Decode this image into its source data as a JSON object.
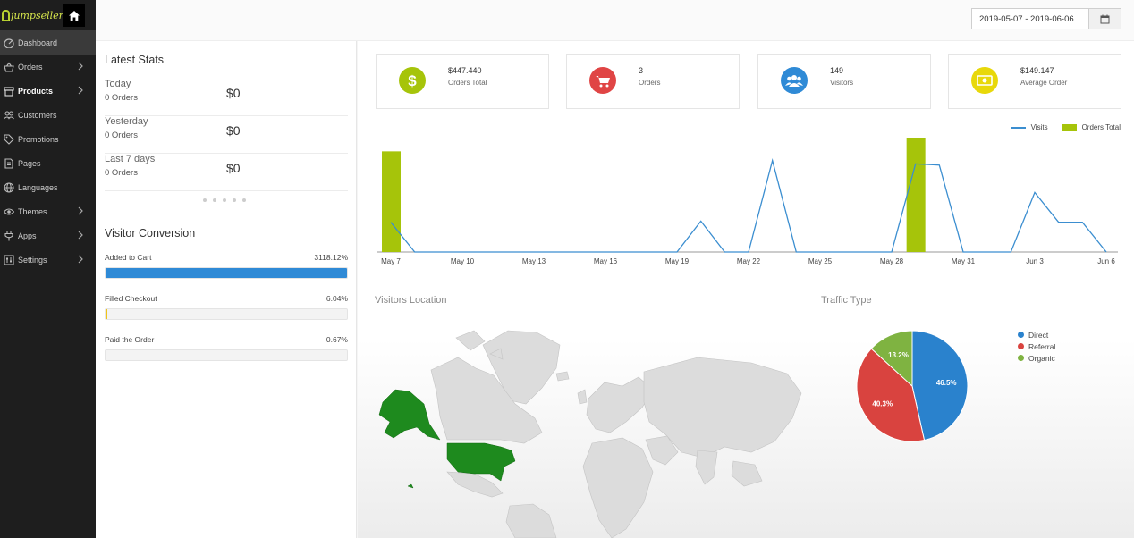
{
  "brand": {
    "logo_text": "jumpseller"
  },
  "sidebar": {
    "items": [
      {
        "label": "Dashboard",
        "icon": "dashboard-icon",
        "has_arrow": false,
        "active": true
      },
      {
        "label": "Orders",
        "icon": "basket-icon",
        "has_arrow": true
      },
      {
        "label": "Products",
        "icon": "box-icon",
        "has_arrow": true,
        "bold": true
      },
      {
        "label": "Customers",
        "icon": "customers-icon",
        "has_arrow": false
      },
      {
        "label": "Promotions",
        "icon": "tag-icon",
        "has_arrow": false
      },
      {
        "label": "Pages",
        "icon": "page-icon",
        "has_arrow": false
      },
      {
        "label": "Languages",
        "icon": "globe-icon",
        "has_arrow": false
      },
      {
        "label": "Themes",
        "icon": "eye-icon",
        "has_arrow": true
      },
      {
        "label": "Apps",
        "icon": "plug-icon",
        "has_arrow": true
      },
      {
        "label": "Settings",
        "icon": "settings-icon",
        "has_arrow": true
      }
    ]
  },
  "header": {
    "date_range": "2019-05-07 - 2019-06-06"
  },
  "latest_stats": {
    "title": "Latest Stats",
    "rows": [
      {
        "period": "Today",
        "orders": "0 Orders",
        "amount": "$0"
      },
      {
        "period": "Yesterday",
        "orders": "0 Orders",
        "amount": "$0"
      },
      {
        "period": "Last 7 days",
        "orders": "0 Orders",
        "amount": "$0"
      }
    ]
  },
  "visitor_conversion": {
    "title": "Visitor Conversion",
    "items": [
      {
        "label": "Added to Cart",
        "value": "3118.12%",
        "fill": 1.0,
        "color": "#2f8ad6"
      },
      {
        "label": "Filled Checkout",
        "value": "6.04%",
        "fill": 0.006,
        "color": "#f0c419"
      },
      {
        "label": "Paid the Order",
        "value": "0.67%",
        "fill": 0.0,
        "color": "#2f8ad6"
      }
    ]
  },
  "summary_cards": [
    {
      "value": "$447.440",
      "label": "Orders Total",
      "icon": "dollar-icon",
      "color": "#a6c40a"
    },
    {
      "value": "3",
      "label": "Orders",
      "icon": "cart-icon",
      "color": "#e04545"
    },
    {
      "value": "149",
      "label": "Visitors",
      "icon": "users-icon",
      "color": "#2f8ad6"
    },
    {
      "value": "$149.147",
      "label": "Average Order",
      "icon": "money-icon",
      "color": "#e8d80a"
    }
  ],
  "chart_data": [
    {
      "type": "line",
      "legend": [
        "Visits",
        "Orders Total"
      ],
      "legend_position": "top-right",
      "x_tick_labels": [
        "May 7",
        "May 10",
        "May 13",
        "May 16",
        "May 19",
        "May 22",
        "May 25",
        "May 28",
        "May 31",
        "Jun 3",
        "Jun 6"
      ],
      "x": [
        "May 7",
        "May 8",
        "May 9",
        "May 10",
        "May 11",
        "May 12",
        "May 13",
        "May 14",
        "May 15",
        "May 16",
        "May 17",
        "May 18",
        "May 19",
        "May 20",
        "May 21",
        "May 22",
        "May 23",
        "May 24",
        "May 25",
        "May 26",
        "May 27",
        "May 28",
        "May 29",
        "May 30",
        "May 31",
        "Jun 1",
        "Jun 2",
        "Jun 3",
        "Jun 4",
        "Jun 5",
        "Jun 6"
      ],
      "series": [
        {
          "name": "Visits",
          "kind": "line",
          "color": "#3b8ed0",
          "values": [
            26,
            0,
            0,
            0,
            0,
            0,
            0,
            0,
            0,
            0,
            0,
            0,
            0,
            27,
            0,
            0,
            80,
            0,
            0,
            0,
            0,
            0,
            77,
            76,
            0,
            0,
            0,
            52,
            26,
            26,
            0
          ]
        },
        {
          "name": "Orders Total",
          "kind": "bar",
          "color": "#a6c40a",
          "values": [
            88,
            0,
            0,
            0,
            0,
            0,
            0,
            0,
            0,
            0,
            0,
            0,
            0,
            0,
            0,
            0,
            0,
            0,
            0,
            0,
            0,
            0,
            100,
            0,
            0,
            0,
            0,
            0,
            0,
            0,
            0
          ]
        }
      ],
      "ylim": [
        0,
        100
      ]
    },
    {
      "type": "pie",
      "title": "Traffic Type",
      "categories": [
        "Direct",
        "Referral",
        "Organic"
      ],
      "values": [
        46.5,
        40.3,
        13.2
      ],
      "colors": [
        "#2a82cd",
        "#d9433f",
        "#7fb341"
      ]
    }
  ],
  "visitors_location": {
    "title": "Visitors Location",
    "highlighted_regions": [
      "United States",
      "Alaska"
    ]
  }
}
